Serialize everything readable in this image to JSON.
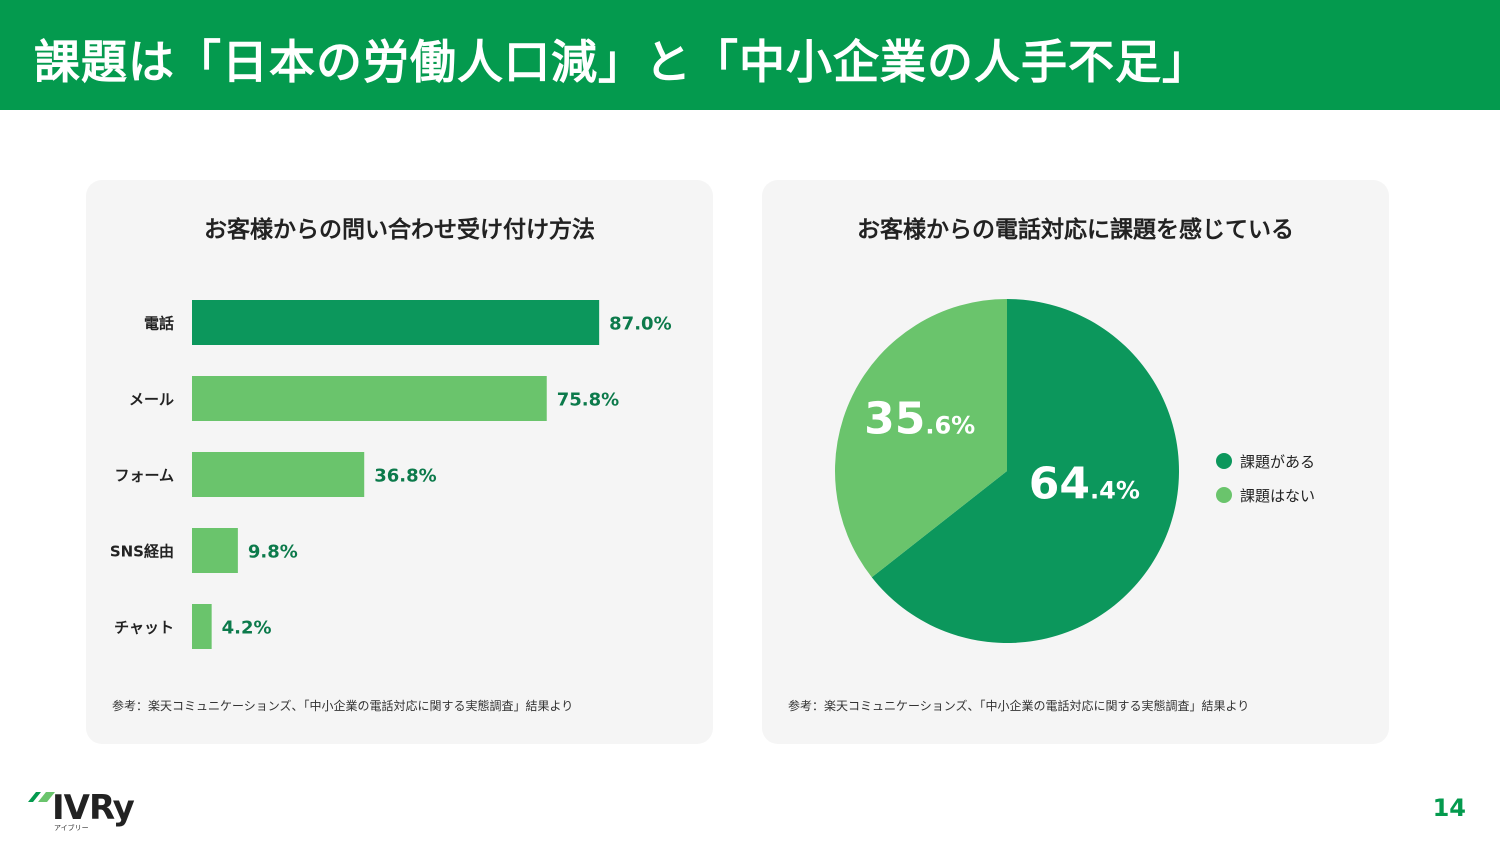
{
  "header": {
    "title": "課題は「日本の労働人口減」と「中小企業の人手不足」"
  },
  "colors": {
    "brand_green": "#049a4e",
    "dark_green": "#0c975c",
    "light_green": "#6ac46c"
  },
  "left_card": {
    "title": "お客様からの問い合わせ受け付け方法",
    "source": "参考：楽天コミュニケーションズ、「中小企業の電話対応に関する実態調査」結果より"
  },
  "right_card": {
    "title": "お客様からの電話対応に課題を感じている",
    "source": "参考：楽天コミュニケーションズ、「中小企業の電話対応に関する実態調査」結果より"
  },
  "chart_data": [
    {
      "type": "bar",
      "orientation": "horizontal",
      "title": "お客様からの問い合わせ受け付け方法",
      "categories": [
        "電話",
        "メール",
        "フォーム",
        "SNS経由",
        "チャット"
      ],
      "values": [
        87.0,
        75.8,
        36.8,
        9.8,
        4.2
      ],
      "labels": [
        "87.0%",
        "75.8%",
        "36.8%",
        "9.8%",
        "4.2%"
      ],
      "unit": "%",
      "xlim": [
        0,
        100
      ],
      "grid": false,
      "bar_colors": [
        "#0c975c",
        "#6ac46c",
        "#6ac46c",
        "#6ac46c",
        "#6ac46c"
      ]
    },
    {
      "type": "pie",
      "title": "お客様からの電話対応に課題を感じている",
      "slices": [
        {
          "name": "課題がある",
          "value": 64.4,
          "label_int": "64",
          "label_dec": ".4%",
          "color": "#0c975c"
        },
        {
          "name": "課題はない",
          "value": 35.6,
          "label_int": "35",
          "label_dec": ".6%",
          "color": "#6ac46c"
        }
      ],
      "legend_position": "right"
    }
  ],
  "footer": {
    "logo": "IVRy",
    "logo_sub": "アイブリー",
    "page_number": "14"
  }
}
